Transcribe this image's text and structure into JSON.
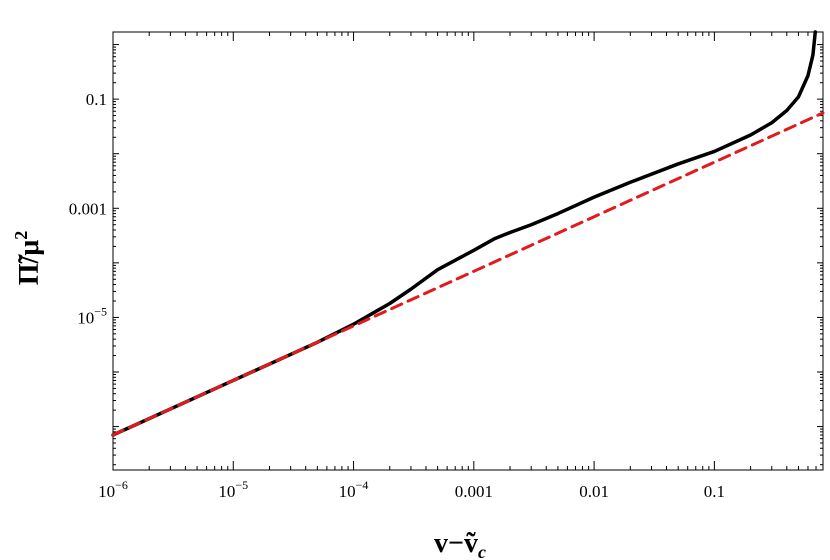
{
  "chart_data": {
    "type": "line",
    "title": "",
    "xlabel": "v−ṽ",
    "xlabel_sub": "c",
    "ylabel": "Π̃/μ",
    "ylabel_sup": "2",
    "xscale": "log",
    "yscale": "log",
    "xlim": [
      1e-06,
      0.8
    ],
    "ylim": [
      1.6e-08,
      1.7
    ],
    "grid": false,
    "legend": "none",
    "x_ticks": [
      {
        "value": 1e-06,
        "base": "10",
        "exp": "−6"
      },
      {
        "value": 1e-05,
        "base": "10",
        "exp": "−5"
      },
      {
        "value": 0.0001,
        "base": "10",
        "exp": "−4"
      },
      {
        "value": 0.001,
        "label": "0.001"
      },
      {
        "value": 0.01,
        "label": "0.01"
      },
      {
        "value": 0.1,
        "label": "0.1"
      }
    ],
    "y_ticks": [
      {
        "value": 1e-05,
        "base": "10",
        "exp": "−5"
      },
      {
        "value": 0.001,
        "label": "0.001"
      },
      {
        "value": 0.1,
        "label": "0.1"
      }
    ],
    "series": [
      {
        "color": "#000000",
        "style": "solid",
        "points": [
          [
            1e-06,
            7e-08
          ],
          [
            1e-05,
            7e-07
          ],
          [
            5e-05,
            3.5e-06
          ],
          [
            0.0001,
            7.5e-06
          ],
          [
            0.0002,
            1.8e-05
          ],
          [
            0.0003,
            3.3e-05
          ],
          [
            0.0005,
            7.5e-05
          ],
          [
            0.001,
            0.00017
          ],
          [
            0.0015,
            0.00028
          ],
          [
            0.002,
            0.00036
          ],
          [
            0.003,
            0.0005
          ],
          [
            0.005,
            0.0008
          ],
          [
            0.01,
            0.0016
          ],
          [
            0.02,
            0.003
          ],
          [
            0.05,
            0.0065
          ],
          [
            0.1,
            0.011
          ],
          [
            0.2,
            0.022
          ],
          [
            0.3,
            0.037
          ],
          [
            0.4,
            0.062
          ],
          [
            0.5,
            0.11
          ],
          [
            0.6,
            0.27
          ],
          [
            0.66,
            0.65
          ],
          [
            0.69,
            1.7
          ]
        ]
      },
      {
        "color": "#e31a1c",
        "style": "dashed",
        "points": [
          [
            1e-06,
            7e-08
          ],
          [
            1e-05,
            7e-07
          ],
          [
            0.0001,
            7e-06
          ],
          [
            0.001,
            7e-05
          ],
          [
            0.01,
            0.0007
          ],
          [
            0.1,
            0.007
          ],
          [
            0.8,
            0.056
          ]
        ]
      }
    ]
  }
}
